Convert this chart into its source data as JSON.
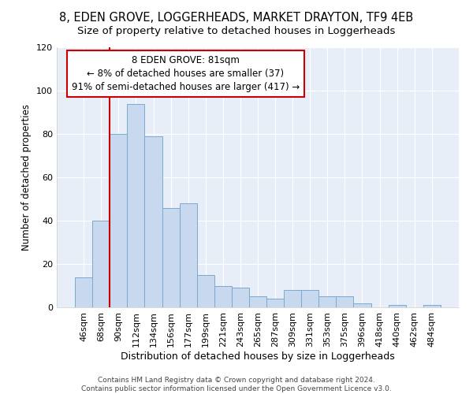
{
  "title": "8, EDEN GROVE, LOGGERHEADS, MARKET DRAYTON, TF9 4EB",
  "subtitle": "Size of property relative to detached houses in Loggerheads",
  "xlabel": "Distribution of detached houses by size in Loggerheads",
  "ylabel": "Number of detached properties",
  "bar_labels": [
    "46sqm",
    "68sqm",
    "90sqm",
    "112sqm",
    "134sqm",
    "156sqm",
    "177sqm",
    "199sqm",
    "221sqm",
    "243sqm",
    "265sqm",
    "287sqm",
    "309sqm",
    "331sqm",
    "353sqm",
    "375sqm",
    "396sqm",
    "418sqm",
    "440sqm",
    "462sqm",
    "484sqm"
  ],
  "bar_values": [
    14,
    40,
    80,
    94,
    79,
    46,
    48,
    15,
    10,
    9,
    5,
    4,
    8,
    8,
    5,
    5,
    2,
    0,
    1,
    0,
    1
  ],
  "bar_color": "#c8d8ee",
  "bar_edge_color": "#7aaacc",
  "ylim": [
    0,
    120
  ],
  "yticks": [
    0,
    20,
    40,
    60,
    80,
    100,
    120
  ],
  "annotation_title": "8 EDEN GROVE: 81sqm",
  "annotation_line1": "← 8% of detached houses are smaller (37)",
  "annotation_line2": "91% of semi-detached houses are larger (417) →",
  "annotation_box_color": "#ffffff",
  "annotation_box_edge": "#cc0000",
  "line_color": "#cc0000",
  "bg_color": "#e8eef8",
  "footer1": "Contains HM Land Registry data © Crown copyright and database right 2024.",
  "footer2": "Contains public sector information licensed under the Open Government Licence v3.0.",
  "title_fontsize": 10.5,
  "subtitle_fontsize": 9.5,
  "xlabel_fontsize": 9,
  "ylabel_fontsize": 8.5,
  "tick_fontsize": 8,
  "annotation_fontsize": 8.5,
  "footer_fontsize": 6.5,
  "line_x_index": 1.5
}
